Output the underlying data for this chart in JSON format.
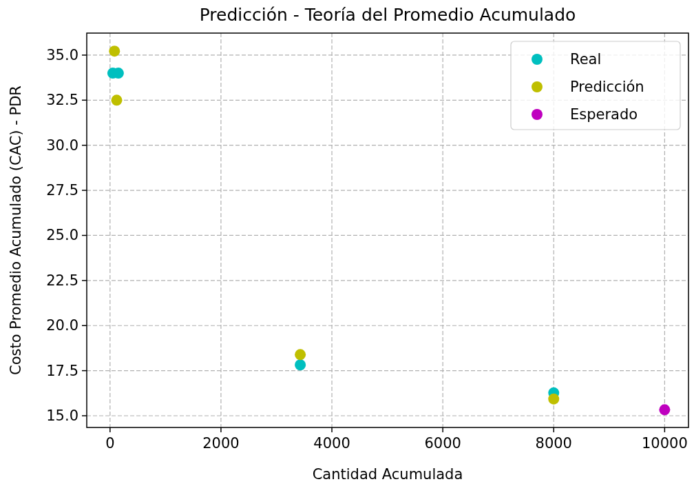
{
  "chart_data": {
    "type": "scatter",
    "title": "Predicción - Teoría del Promedio Acumulado",
    "xlabel": "Cantidad Acumulada",
    "ylabel": "Costo Promedio Acumulado (CAC) - PDR",
    "series": [
      {
        "name": "Real",
        "color": "#00bfbf",
        "x": [
          50,
          150,
          3430,
          8000
        ],
        "values": [
          34.0,
          34.0,
          17.82,
          16.27
        ]
      },
      {
        "name": "Predicción",
        "color": "#bfbf00",
        "x": [
          80,
          120,
          3430,
          8000
        ],
        "values": [
          35.22,
          32.5,
          18.39,
          15.93
        ]
      },
      {
        "name": "Esperado",
        "color": "#bf00bf",
        "x": [
          10000
        ],
        "values": [
          15.33
        ]
      }
    ],
    "xlim": [
      -420,
      10430
    ],
    "xticks": [
      0,
      2000,
      4000,
      6000,
      8000,
      10000
    ],
    "ylim": [
      14.35,
      36.22
    ],
    "yticks": [
      {
        "value": 15,
        "label": "15.0"
      },
      {
        "value": 17.5,
        "label": "17.5"
      },
      {
        "value": 20,
        "label": "20.0"
      },
      {
        "value": 22.5,
        "label": "22.5"
      },
      {
        "value": 25,
        "label": "25.0"
      },
      {
        "value": 27.5,
        "label": "27.5"
      },
      {
        "value": 30,
        "label": "30.0"
      },
      {
        "value": 32.5,
        "label": "32.5"
      },
      {
        "value": 35,
        "label": "35.0"
      }
    ],
    "grid": true,
    "legend": "top right",
    "marker": "circle"
  }
}
